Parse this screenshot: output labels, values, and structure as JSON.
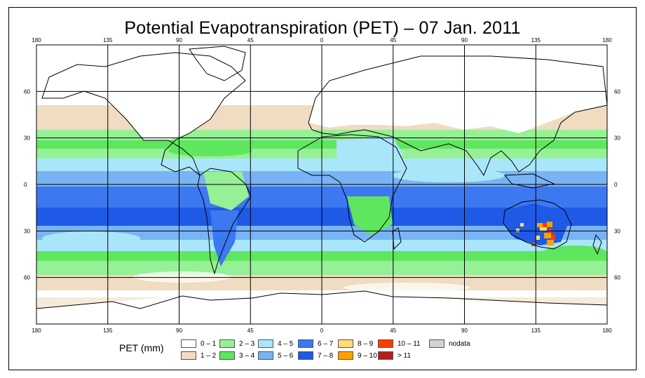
{
  "title": "Potential Evapotranspiration (PET) – 07 Jan. 2011",
  "map": {
    "projection": "equirectangular",
    "lon_range": [
      -180,
      180
    ],
    "lat_range": [
      -90,
      90
    ],
    "top_labels": [
      "180",
      "135",
      "90",
      "45",
      "0",
      "45",
      "90",
      "135",
      "180"
    ],
    "side_labels": [
      "60",
      "30",
      "0",
      "30",
      "60"
    ],
    "grid": true
  },
  "legend": {
    "title": "PET (mm)",
    "items": [
      {
        "label": "0 – 1",
        "color": "#ffffff"
      },
      {
        "label": "1 – 2",
        "color": "#f0dcc0"
      },
      {
        "label": "2 – 3",
        "color": "#96f096"
      },
      {
        "label": "3 – 4",
        "color": "#5fe65f"
      },
      {
        "label": "4 – 5",
        "color": "#aae6fa"
      },
      {
        "label": "5 – 6",
        "color": "#78b4f5"
      },
      {
        "label": "6 – 7",
        "color": "#3c78f0"
      },
      {
        "label": "7 – 8",
        "color": "#1e5ae6"
      },
      {
        "label": "8 – 9",
        "color": "#ffdc78"
      },
      {
        "label": "9 – 10",
        "color": "#ffa000"
      },
      {
        "label": "10 – 11",
        "color": "#fa3c00"
      },
      {
        "label": "> 11",
        "color": "#b41e1e"
      },
      {
        "label": "nodata",
        "color": "#d2d2d2"
      }
    ]
  }
}
